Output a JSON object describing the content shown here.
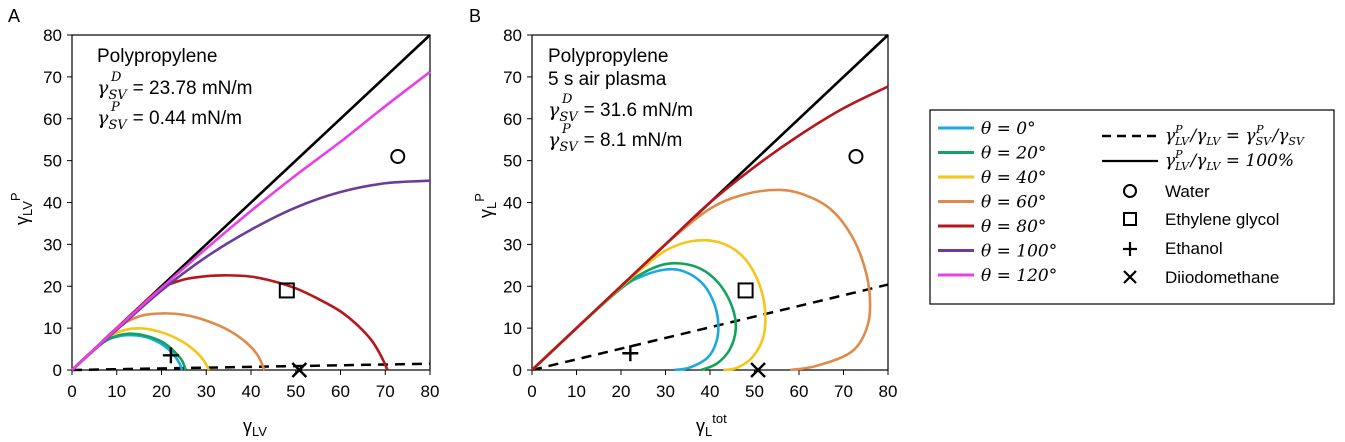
{
  "chart_data": [
    {
      "panel": "A",
      "type": "line",
      "xlabel": "γLV",
      "ylabel": "γLVP",
      "xlim": [
        0,
        80
      ],
      "ylim": [
        0,
        80
      ],
      "xticks": [
        0,
        10,
        20,
        30,
        40,
        50,
        60,
        70,
        80
      ],
      "yticks": [
        0,
        10,
        20,
        30,
        40,
        50,
        60,
        70,
        80
      ],
      "grid": false,
      "annotation": {
        "material": "Polypropylene",
        "treatment": "",
        "dispersive": "= 23.78 mN/m",
        "polar": "= 0.44 mN/m"
      },
      "theta_curves": [
        {
          "name": "θ = 0°",
          "color": "#1ba9de",
          "points": [
            [
              0,
              0
            ],
            [
              4,
              4
            ],
            [
              8,
              7.2
            ],
            [
              12,
              8.3
            ],
            [
              16,
              8.0
            ],
            [
              19,
              6.8
            ],
            [
              21.5,
              5.0
            ],
            [
              23,
              3.3
            ],
            [
              24,
              1.6
            ],
            [
              24.6,
              0
            ]
          ]
        },
        {
          "name": "θ = 20°",
          "color": "#12a45c",
          "points": [
            [
              0,
              0
            ],
            [
              4,
              4
            ],
            [
              8,
              7.3
            ],
            [
              12,
              8.6
            ],
            [
              16,
              8.3
            ],
            [
              20,
              6.8
            ],
            [
              22.5,
              4.8
            ],
            [
              24.5,
              2.4
            ],
            [
              25.4,
              0
            ]
          ]
        },
        {
          "name": "θ = 40°",
          "color": "#f5c518",
          "points": [
            [
              0,
              0
            ],
            [
              4,
              4
            ],
            [
              8,
              7.8
            ],
            [
              12,
              9.6
            ],
            [
              16,
              9.9
            ],
            [
              20,
              9.0
            ],
            [
              24,
              7.2
            ],
            [
              27,
              5.0
            ],
            [
              29.3,
              2.5
            ],
            [
              30.6,
              0
            ]
          ]
        },
        {
          "name": "θ = 60°",
          "color": "#e08a4a",
          "points": [
            [
              0,
              0
            ],
            [
              5,
              5
            ],
            [
              10,
              10
            ],
            [
              15,
              12.8
            ],
            [
              20,
              13.5
            ],
            [
              25,
              13.2
            ],
            [
              30,
              11.8
            ],
            [
              35,
              9.5
            ],
            [
              39,
              6.5
            ],
            [
              41.5,
              3.5
            ],
            [
              43,
              0
            ]
          ]
        },
        {
          "name": "θ = 80°",
          "color": "#b5171c",
          "points": [
            [
              0,
              0
            ],
            [
              5,
              5
            ],
            [
              10,
              10
            ],
            [
              15,
              15
            ],
            [
              20,
              19.5
            ],
            [
              25,
              21.6
            ],
            [
              30,
              22.4
            ],
            [
              35,
              22.6
            ],
            [
              40,
              22.3
            ],
            [
              45,
              21.2
            ],
            [
              50,
              19.5
            ],
            [
              55,
              17.0
            ],
            [
              60,
              14.0
            ],
            [
              64,
              10.5
            ],
            [
              67,
              7.0
            ],
            [
              69,
              3.5
            ],
            [
              70.5,
              0
            ]
          ]
        },
        {
          "name": "θ = 100°",
          "color": "#6a3d9a",
          "points": [
            [
              0,
              0
            ],
            [
              10,
              9.6
            ],
            [
              20,
              19
            ],
            [
              30,
              27
            ],
            [
              40,
              33.5
            ],
            [
              50,
              38.8
            ],
            [
              60,
              42.5
            ],
            [
              70,
              44.6
            ],
            [
              80,
              45.2
            ]
          ]
        },
        {
          "name": "θ = 120°",
          "color": "#e83fe6",
          "points": [
            [
              0,
              0
            ],
            [
              10,
              9.9
            ],
            [
              20,
              19.6
            ],
            [
              30,
              29
            ],
            [
              40,
              38
            ],
            [
              50,
              46.5
            ],
            [
              60,
              54.5
            ],
            [
              70,
              63
            ],
            [
              80,
              71.2
            ]
          ]
        }
      ],
      "ratio_lines": [
        {
          "name": "γLVP/γLV = γSVP/γSV",
          "style": "dashed",
          "points": [
            [
              0,
              0
            ],
            [
              80,
              1.5
            ]
          ]
        },
        {
          "name": "γLVP/γLV = 100%",
          "style": "solid",
          "points": [
            [
              0,
              0
            ],
            [
              80,
              80
            ]
          ]
        }
      ],
      "liquids": [
        {
          "name": "Water",
          "marker": "circle",
          "x": 72.8,
          "y": 51
        },
        {
          "name": "Ethylene glycol",
          "marker": "square",
          "x": 48,
          "y": 19
        },
        {
          "name": "Ethanol",
          "marker": "plus",
          "x": 22.1,
          "y": 3.5
        },
        {
          "name": "Diiodomethane",
          "marker": "cross",
          "x": 50.8,
          "y": 0
        }
      ]
    },
    {
      "panel": "B",
      "type": "line",
      "xlabel": "γLtot",
      "ylabel": "γLP",
      "xlim": [
        0,
        80
      ],
      "ylim": [
        0,
        80
      ],
      "xticks": [
        0,
        10,
        20,
        30,
        40,
        50,
        60,
        70,
        80
      ],
      "yticks": [
        0,
        10,
        20,
        30,
        40,
        50,
        60,
        70,
        80
      ],
      "grid": false,
      "annotation": {
        "material": "Polypropylene",
        "treatment": "5 s air plasma",
        "dispersive": "= 31.6 mN/m",
        "polar": "= 8.1 mN/m"
      },
      "theta_curves": [
        {
          "name": "θ = 0°",
          "color": "#1ba9de",
          "points": [
            [
              0,
              0
            ],
            [
              10,
              10
            ],
            [
              20,
              19.5
            ],
            [
              25,
              22.5
            ],
            [
              30,
              24
            ],
            [
              34,
              23.6
            ],
            [
              38,
              21
            ],
            [
              40.5,
              17
            ],
            [
              41.8,
              12
            ],
            [
              41.5,
              7
            ],
            [
              39.5,
              3
            ],
            [
              35.5,
              0.6
            ],
            [
              32,
              0
            ]
          ]
        },
        {
          "name": "θ = 20°",
          "color": "#12a45c",
          "points": [
            [
              0,
              0
            ],
            [
              10,
              10
            ],
            [
              20,
              19.5
            ],
            [
              25,
              23.2
            ],
            [
              30,
              25.3
            ],
            [
              35,
              25.2
            ],
            [
              39,
              23.5
            ],
            [
              42.5,
              20
            ],
            [
              45,
              15
            ],
            [
              45.8,
              10
            ],
            [
              44.5,
              5
            ],
            [
              41.5,
              1.5
            ],
            [
              38,
              0
            ]
          ]
        },
        {
          "name": "θ = 40°",
          "color": "#f5c518",
          "points": [
            [
              0,
              0
            ],
            [
              10,
              10
            ],
            [
              20,
              19.8
            ],
            [
              25,
              24.5
            ],
            [
              30,
              28.5
            ],
            [
              36,
              30.8
            ],
            [
              42,
              30.5
            ],
            [
              47,
              27.5
            ],
            [
              50.5,
              22
            ],
            [
              52.3,
              15
            ],
            [
              52,
              8
            ],
            [
              49.5,
              3
            ],
            [
              46,
              0.5
            ],
            [
              43,
              0
            ]
          ]
        },
        {
          "name": "θ = 60°",
          "color": "#e08a4a",
          "points": [
            [
              0,
              0
            ],
            [
              10,
              10
            ],
            [
              20,
              20
            ],
            [
              30,
              30
            ],
            [
              40,
              38.5
            ],
            [
              48,
              42
            ],
            [
              56,
              43
            ],
            [
              62,
              41.5
            ],
            [
              67,
              38.5
            ],
            [
              71,
              33.5
            ],
            [
              74,
              27
            ],
            [
              75.8,
              19
            ],
            [
              75.5,
              11
            ],
            [
              72,
              4.5
            ],
            [
              64,
              1
            ],
            [
              58,
              0
            ]
          ]
        },
        {
          "name": "θ = 80°",
          "color": "#b5171c",
          "points": [
            [
              0,
              0
            ],
            [
              10,
              10
            ],
            [
              20,
              20
            ],
            [
              30,
              30
            ],
            [
              40,
              40
            ],
            [
              50,
              48.5
            ],
            [
              60,
              56
            ],
            [
              70,
              62.5
            ],
            [
              80,
              67.7
            ]
          ]
        }
      ],
      "ratio_lines": [
        {
          "name": "γLVP/γLV = γSVP/γSV",
          "style": "dashed",
          "points": [
            [
              0,
              0
            ],
            [
              80,
              20.4
            ]
          ]
        },
        {
          "name": "γLVP/γLV = 100%",
          "style": "solid",
          "points": [
            [
              0,
              0
            ],
            [
              80,
              80
            ]
          ]
        }
      ],
      "liquids": [
        {
          "name": "Water",
          "marker": "circle",
          "x": 72.8,
          "y": 51
        },
        {
          "name": "Ethylene glycol",
          "marker": "square",
          "x": 48,
          "y": 19
        },
        {
          "name": "Ethanol",
          "marker": "plus",
          "x": 22.1,
          "y": 4
        },
        {
          "name": "Diiodomethane",
          "marker": "cross",
          "x": 50.8,
          "y": 0
        }
      ]
    }
  ],
  "labels": {
    "panel_a": "A",
    "panel_b": "B",
    "a_xlabel_main": "γ",
    "a_xlabel_sub": "LV",
    "a_ylabel_main": "γ",
    "a_ylabel_sub": "LV",
    "a_ylabel_sup": "P",
    "b_xlabel_main": "γ",
    "b_xlabel_sub": "L",
    "b_xlabel_sup": "tot",
    "b_ylabel_main": "γ",
    "b_ylabel_sub": "L",
    "b_ylabel_sup": "P",
    "gamma": "γ",
    "sub_sv": "SV",
    "sup_d": "D",
    "sup_p": "P"
  },
  "legend": {
    "theta_items": [
      "θ = 0°",
      "θ = 20°",
      "θ = 40°",
      "θ = 60°",
      "θ = 80°",
      "θ = 100°",
      "θ = 120°"
    ],
    "theta_colors": [
      "#1ba9de",
      "#12a45c",
      "#f5c518",
      "#e08a4a",
      "#b5171c",
      "#6a3d9a",
      "#e83fe6"
    ],
    "ratio_dashed": "γLVP/γLV = γSVP/γSV",
    "ratio_solid": "γLVP/γLV = 100%",
    "water": "Water",
    "ethylene_glycol": "Ethylene glycol",
    "ethanol": "Ethanol",
    "diiodomethane": "Diiodomethane"
  }
}
